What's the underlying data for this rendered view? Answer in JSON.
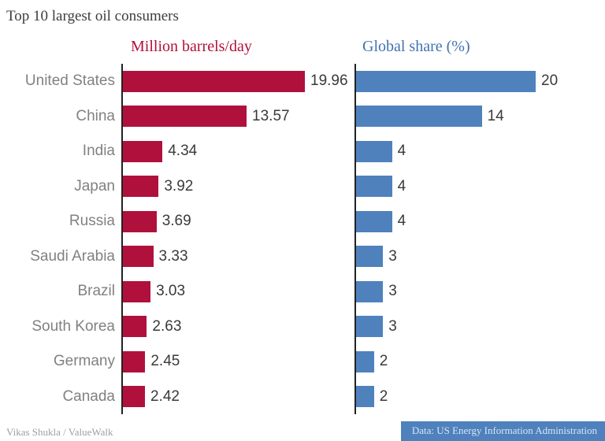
{
  "title": "Top 10 largest oil consumers",
  "headers": {
    "left": "Million barrels/day",
    "right": "Global share (%)"
  },
  "footer": {
    "left": "Vikas Shukla / ValueWalk",
    "right": "Data: US Energy Information Administration"
  },
  "colors": {
    "barrels_bar": "#b0113c",
    "barrels_header": "#b0113c",
    "share_bar": "#4f81bd",
    "share_header": "#4272b0",
    "country_label": "#818181",
    "value_label": "#3a3a3a",
    "footer_left_text": "#9b9fa3",
    "footer_right_bg": "#4f81bd",
    "footer_right_text": "#d9e5f3",
    "axis_line": "#222222"
  },
  "chart_data": {
    "type": "bar",
    "orientation": "horizontal",
    "title": "Top 10 largest oil consumers",
    "categories": [
      "United States",
      "China",
      "India",
      "Japan",
      "Russia",
      "Saudi Arabia",
      "Brazil",
      "South Korea",
      "Germany",
      "Canada"
    ],
    "series": [
      {
        "name": "Million barrels/day",
        "color": "#b0113c",
        "values": [
          19.96,
          13.57,
          4.34,
          3.92,
          3.69,
          3.33,
          3.03,
          2.63,
          2.45,
          2.42
        ],
        "labels": [
          "19.96",
          "13.57",
          "4.34",
          "3.92",
          "3.69",
          "3.33",
          "3.03",
          "2.63",
          "2.45",
          "2.42"
        ],
        "xlim": [
          0,
          20
        ]
      },
      {
        "name": "Global share (%)",
        "color": "#4f81bd",
        "values": [
          20,
          14,
          4,
          4,
          4,
          3,
          3,
          3,
          2,
          2
        ],
        "labels": [
          "20",
          "14",
          "4",
          "4",
          "4",
          "3",
          "3",
          "3",
          "2",
          "2"
        ],
        "xlim": [
          0,
          20
        ]
      }
    ],
    "value_labels": true,
    "grid": false,
    "legend_position": "column-headers"
  }
}
